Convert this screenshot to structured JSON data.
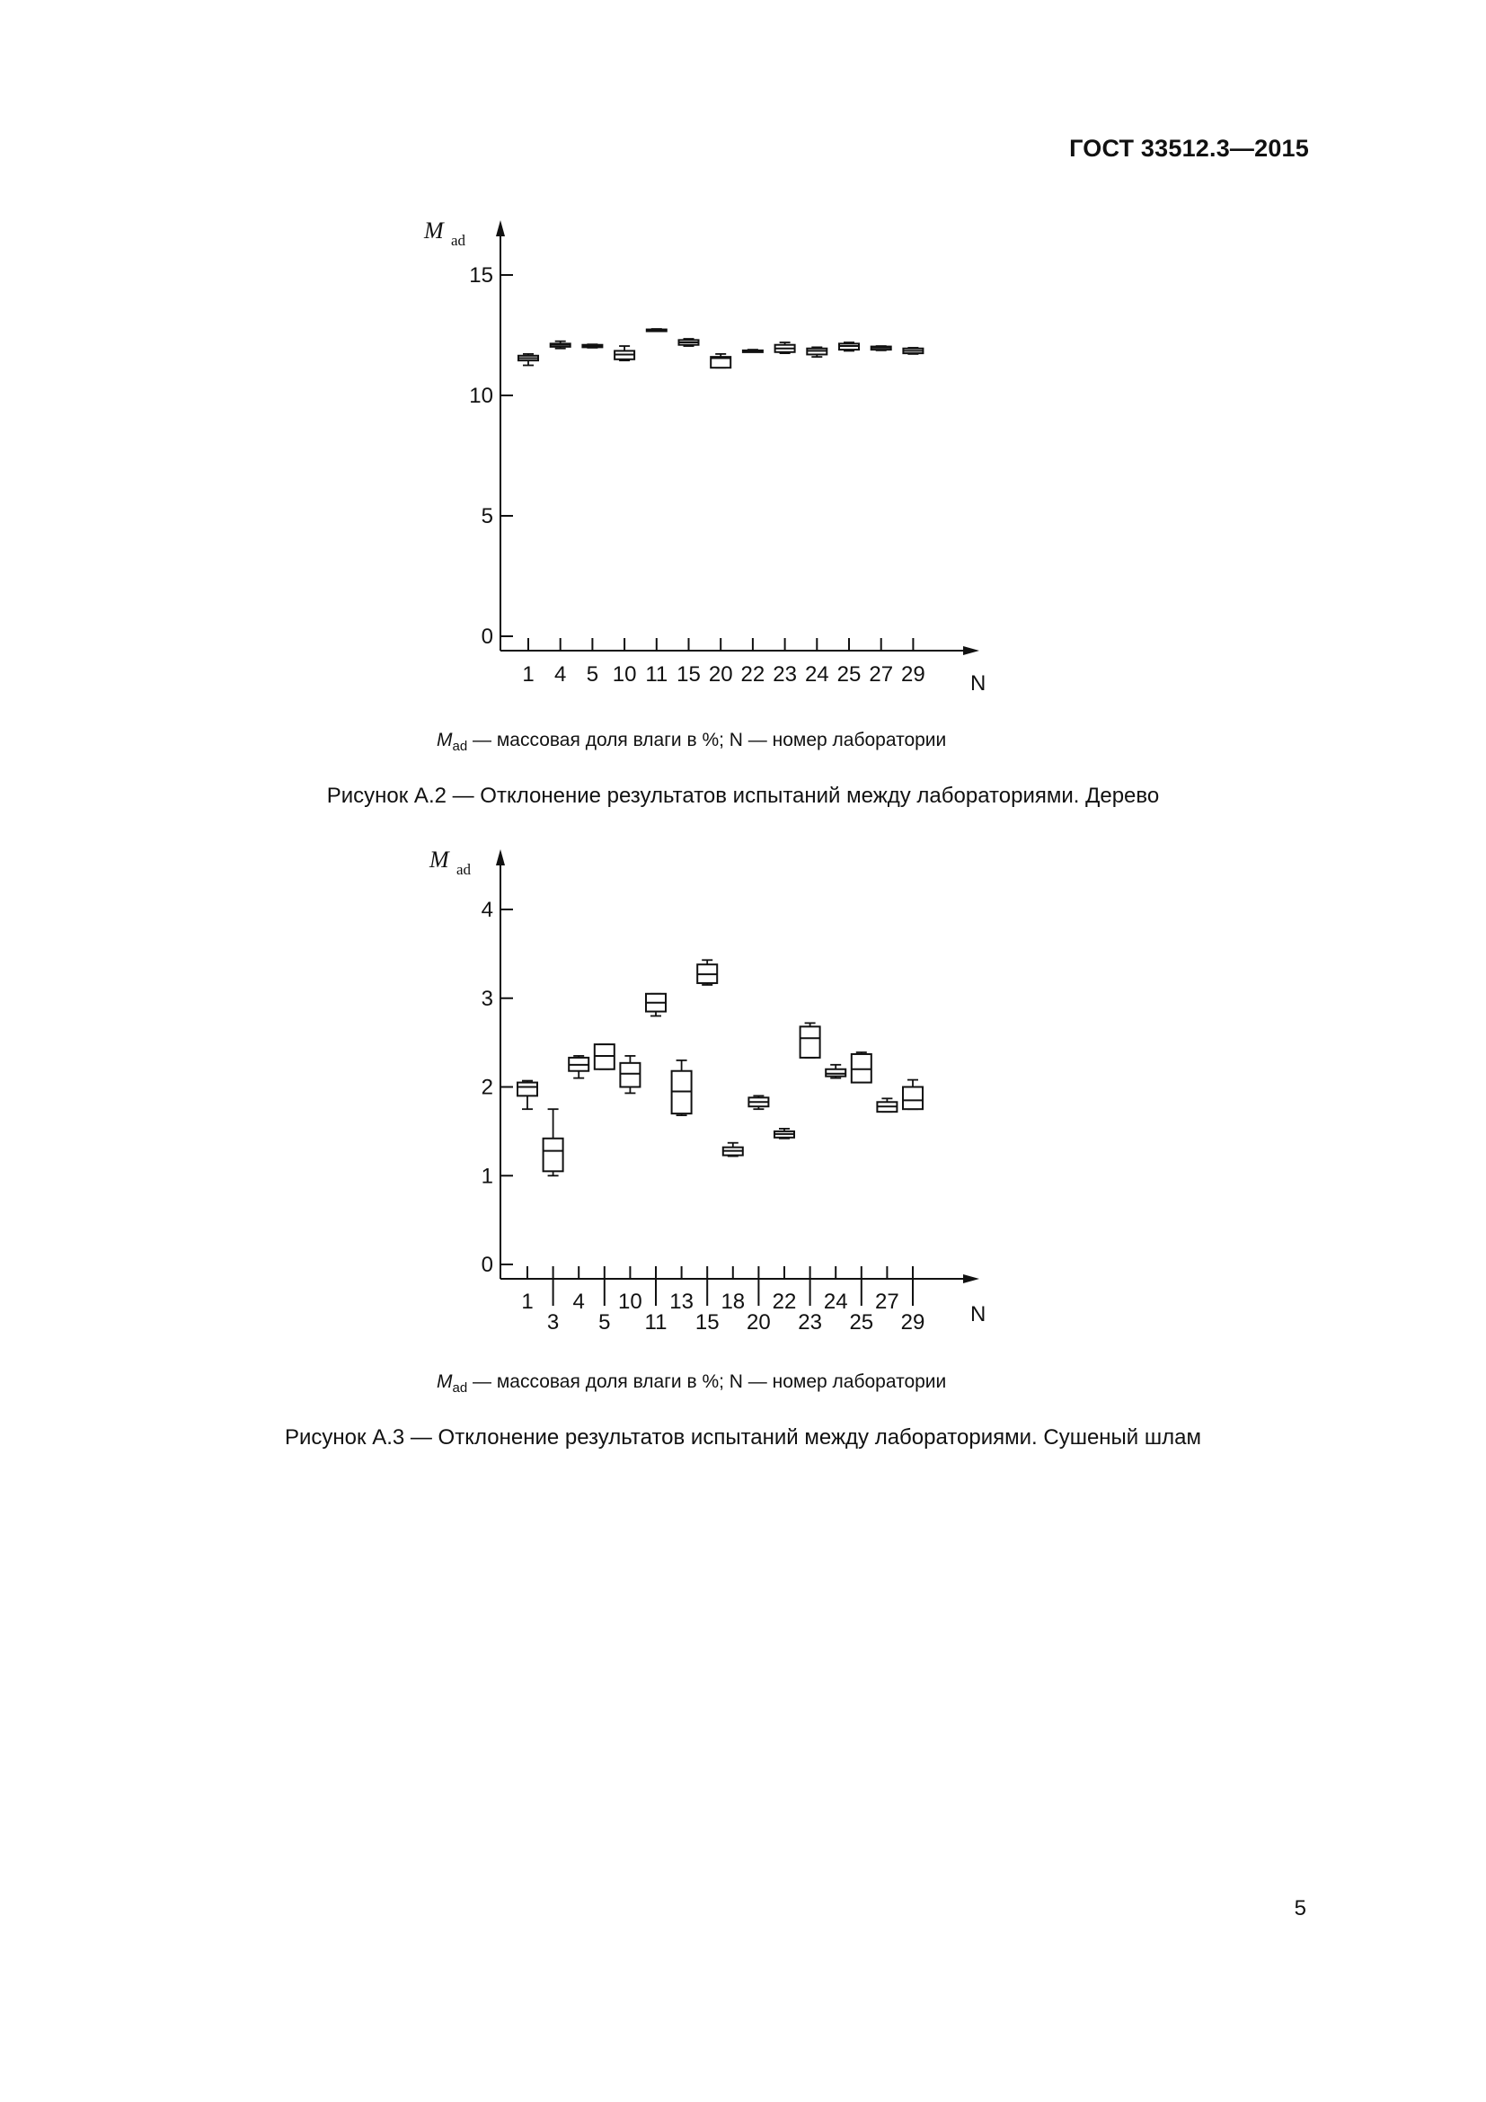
{
  "header": {
    "standard": "ГОСТ 33512.3—2015"
  },
  "page_number": "5",
  "legend": {
    "symbol": "M",
    "symbol_sub": "ad",
    "text": " — массовая доля влаги в %; N — номер лаборатории"
  },
  "chart_data": [
    {
      "type": "boxplot",
      "caption": "Рисунок А.2 — Отклонение результатов испытаний между лабораториями. Дерево",
      "ylabel": "M",
      "ylabel_sub": "ad",
      "xlabel": "N",
      "ylim": [
        0,
        15
      ],
      "yticks": [
        0,
        5,
        10,
        15
      ],
      "categories": [
        "1",
        "4",
        "5",
        "10",
        "11",
        "15",
        "20",
        "22",
        "23",
        "24",
        "25",
        "27",
        "29"
      ],
      "boxes": [
        {
          "lab": "1",
          "min": 11.25,
          "q1": 11.45,
          "median": 11.55,
          "q3": 11.65,
          "max": 11.72
        },
        {
          "lab": "4",
          "min": 11.95,
          "q1": 12.02,
          "median": 12.1,
          "q3": 12.15,
          "max": 12.25
        },
        {
          "lab": "5",
          "min": 11.98,
          "q1": 12.0,
          "median": 12.05,
          "q3": 12.1,
          "max": 12.12
        },
        {
          "lab": "10",
          "min": 11.45,
          "q1": 11.5,
          "median": 11.7,
          "q3": 11.85,
          "max": 12.05
        },
        {
          "lab": "11",
          "min": 12.68,
          "q1": 12.7,
          "median": 12.72,
          "q3": 12.74,
          "max": 12.76
        },
        {
          "lab": "15",
          "min": 12.05,
          "q1": 12.1,
          "median": 12.2,
          "q3": 12.3,
          "max": 12.35
        },
        {
          "lab": "20",
          "min": 11.15,
          "q1": 11.15,
          "median": 11.55,
          "q3": 11.6,
          "max": 11.72
        },
        {
          "lab": "22",
          "min": 11.83,
          "q1": 11.85,
          "median": 11.86,
          "q3": 11.87,
          "max": 11.9
        },
        {
          "lab": "23",
          "min": 11.75,
          "q1": 11.8,
          "median": 11.95,
          "q3": 12.1,
          "max": 12.2
        },
        {
          "lab": "24",
          "min": 11.6,
          "q1": 11.7,
          "median": 11.85,
          "q3": 11.95,
          "max": 12.0
        },
        {
          "lab": "25",
          "min": 11.85,
          "q1": 11.9,
          "median": 12.05,
          "q3": 12.15,
          "max": 12.2
        },
        {
          "lab": "27",
          "min": 11.87,
          "q1": 11.9,
          "median": 11.98,
          "q3": 12.03,
          "max": 12.05
        },
        {
          "lab": "29",
          "min": 11.72,
          "q1": 11.75,
          "median": 11.85,
          "q3": 11.95,
          "max": 11.98
        }
      ]
    },
    {
      "type": "boxplot",
      "caption": "Рисунок А.3 — Отклонение результатов испытаний между лабораториями. Сушеный шлам",
      "ylabel": "M",
      "ylabel_sub": "ad",
      "xlabel": "N",
      "ylim": [
        0,
        4
      ],
      "yticks": [
        0,
        1,
        2,
        3,
        4
      ],
      "categories": [
        "1",
        "3",
        "4",
        "5",
        "10",
        "11",
        "13",
        "15",
        "18",
        "20",
        "22",
        "23",
        "24",
        "25",
        "27",
        "29"
      ],
      "boxes": [
        {
          "lab": "1",
          "min": 1.75,
          "q1": 1.9,
          "median": 2.0,
          "q3": 2.05,
          "max": 2.07
        },
        {
          "lab": "3",
          "min": 1.0,
          "q1": 1.05,
          "median": 1.28,
          "q3": 1.42,
          "max": 1.75
        },
        {
          "lab": "4",
          "min": 2.1,
          "q1": 2.18,
          "median": 2.25,
          "q3": 2.33,
          "max": 2.35
        },
        {
          "lab": "5",
          "min": 2.2,
          "q1": 2.2,
          "median": 2.35,
          "q3": 2.48,
          "max": 2.48
        },
        {
          "lab": "10",
          "min": 1.93,
          "q1": 2.0,
          "median": 2.15,
          "q3": 2.27,
          "max": 2.35
        },
        {
          "lab": "11",
          "min": 2.8,
          "q1": 2.85,
          "median": 2.95,
          "q3": 3.05,
          "max": 3.05
        },
        {
          "lab": "13",
          "min": 1.68,
          "q1": 1.7,
          "median": 1.95,
          "q3": 2.18,
          "max": 2.3
        },
        {
          "lab": "15",
          "min": 3.15,
          "q1": 3.17,
          "median": 3.27,
          "q3": 3.38,
          "max": 3.43
        },
        {
          "lab": "18",
          "min": 1.22,
          "q1": 1.23,
          "median": 1.28,
          "q3": 1.32,
          "max": 1.37
        },
        {
          "lab": "20",
          "min": 1.75,
          "q1": 1.78,
          "median": 1.83,
          "q3": 1.88,
          "max": 1.9
        },
        {
          "lab": "22",
          "min": 1.42,
          "q1": 1.43,
          "median": 1.47,
          "q3": 1.5,
          "max": 1.53
        },
        {
          "lab": "23",
          "min": 2.33,
          "q1": 2.33,
          "median": 2.55,
          "q3": 2.68,
          "max": 2.72
        },
        {
          "lab": "24",
          "min": 2.1,
          "q1": 2.12,
          "median": 2.15,
          "q3": 2.2,
          "max": 2.25
        },
        {
          "lab": "25",
          "min": 2.05,
          "q1": 2.05,
          "median": 2.2,
          "q3": 2.37,
          "max": 2.39
        },
        {
          "lab": "27",
          "min": 1.72,
          "q1": 1.72,
          "median": 1.78,
          "q3": 1.83,
          "max": 1.87
        },
        {
          "lab": "29",
          "min": 1.75,
          "q1": 1.75,
          "median": 1.85,
          "q3": 2.0,
          "max": 2.08
        }
      ]
    }
  ]
}
